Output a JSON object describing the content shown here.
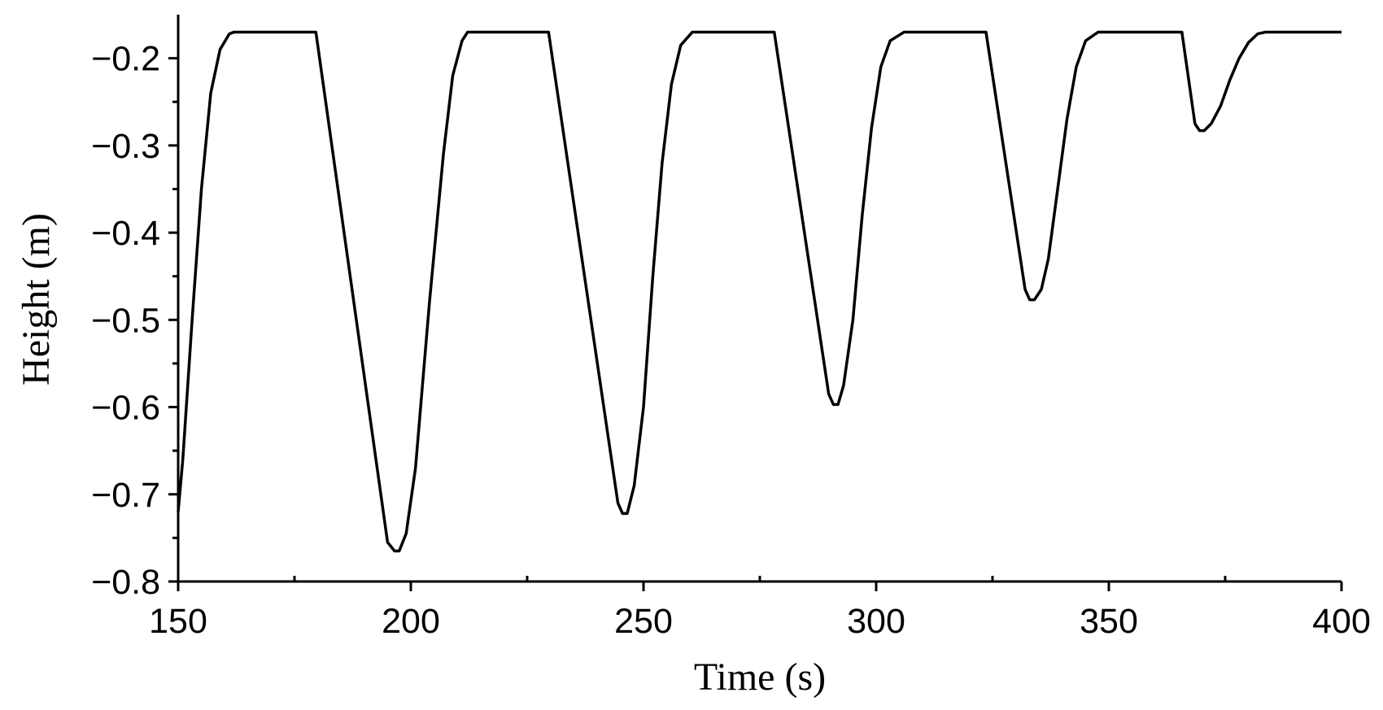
{
  "chart_data": {
    "type": "line",
    "x_label": "Time (s)",
    "y_label": "Height (m)",
    "xlim": [
      150,
      400
    ],
    "xticks": [
      150,
      200,
      250,
      300,
      350,
      400
    ],
    "xminorticks": [
      175,
      225,
      275,
      325,
      375
    ],
    "ylim": [
      -0.8,
      -0.15
    ],
    "yticks": [
      {
        "value": -0.8,
        "label": "−0.8"
      },
      {
        "value": -0.7,
        "label": "−0.7"
      },
      {
        "value": -0.6,
        "label": "−0.6"
      },
      {
        "value": -0.5,
        "label": "−0.5"
      },
      {
        "value": -0.4,
        "label": "−0.4"
      },
      {
        "value": -0.3,
        "label": "−0.3"
      },
      {
        "value": -0.2,
        "label": "−0.2"
      }
    ],
    "yminorticks": [
      -0.75,
      -0.65,
      -0.55,
      -0.45,
      -0.35,
      -0.25
    ],
    "grid": false,
    "color": "#000000",
    "x": [
      150,
      151,
      153,
      155,
      157,
      159,
      161,
      162,
      179.6,
      195,
      196.5,
      197.5,
      199,
      201,
      204,
      207,
      209,
      211,
      212.2,
      229.6,
      244.5,
      245.5,
      246.5,
      248,
      250,
      252,
      254,
      256,
      258,
      260.5,
      278.1,
      289.8,
      290.8,
      291.8,
      293,
      295,
      297,
      299,
      301,
      303,
      306,
      323.6,
      332,
      333,
      334,
      335.5,
      337,
      339,
      341,
      343,
      345,
      347.7,
      365.7,
      368.5,
      369.5,
      370.5,
      372,
      374,
      376,
      378,
      380,
      382,
      383.7,
      400
    ],
    "values": [
      -0.72,
      -0.66,
      -0.5,
      -0.35,
      -0.24,
      -0.19,
      -0.172,
      -0.17,
      -0.17,
      -0.755,
      -0.765,
      -0.765,
      -0.745,
      -0.67,
      -0.48,
      -0.31,
      -0.22,
      -0.18,
      -0.17,
      -0.17,
      -0.71,
      -0.722,
      -0.722,
      -0.69,
      -0.6,
      -0.45,
      -0.32,
      -0.23,
      -0.185,
      -0.17,
      -0.17,
      -0.585,
      -0.597,
      -0.597,
      -0.575,
      -0.5,
      -0.38,
      -0.28,
      -0.21,
      -0.18,
      -0.17,
      -0.17,
      -0.465,
      -0.477,
      -0.477,
      -0.465,
      -0.43,
      -0.35,
      -0.27,
      -0.21,
      -0.18,
      -0.17,
      -0.17,
      -0.275,
      -0.283,
      -0.283,
      -0.275,
      -0.255,
      -0.225,
      -0.2,
      -0.182,
      -0.172,
      -0.17,
      -0.17
    ]
  }
}
